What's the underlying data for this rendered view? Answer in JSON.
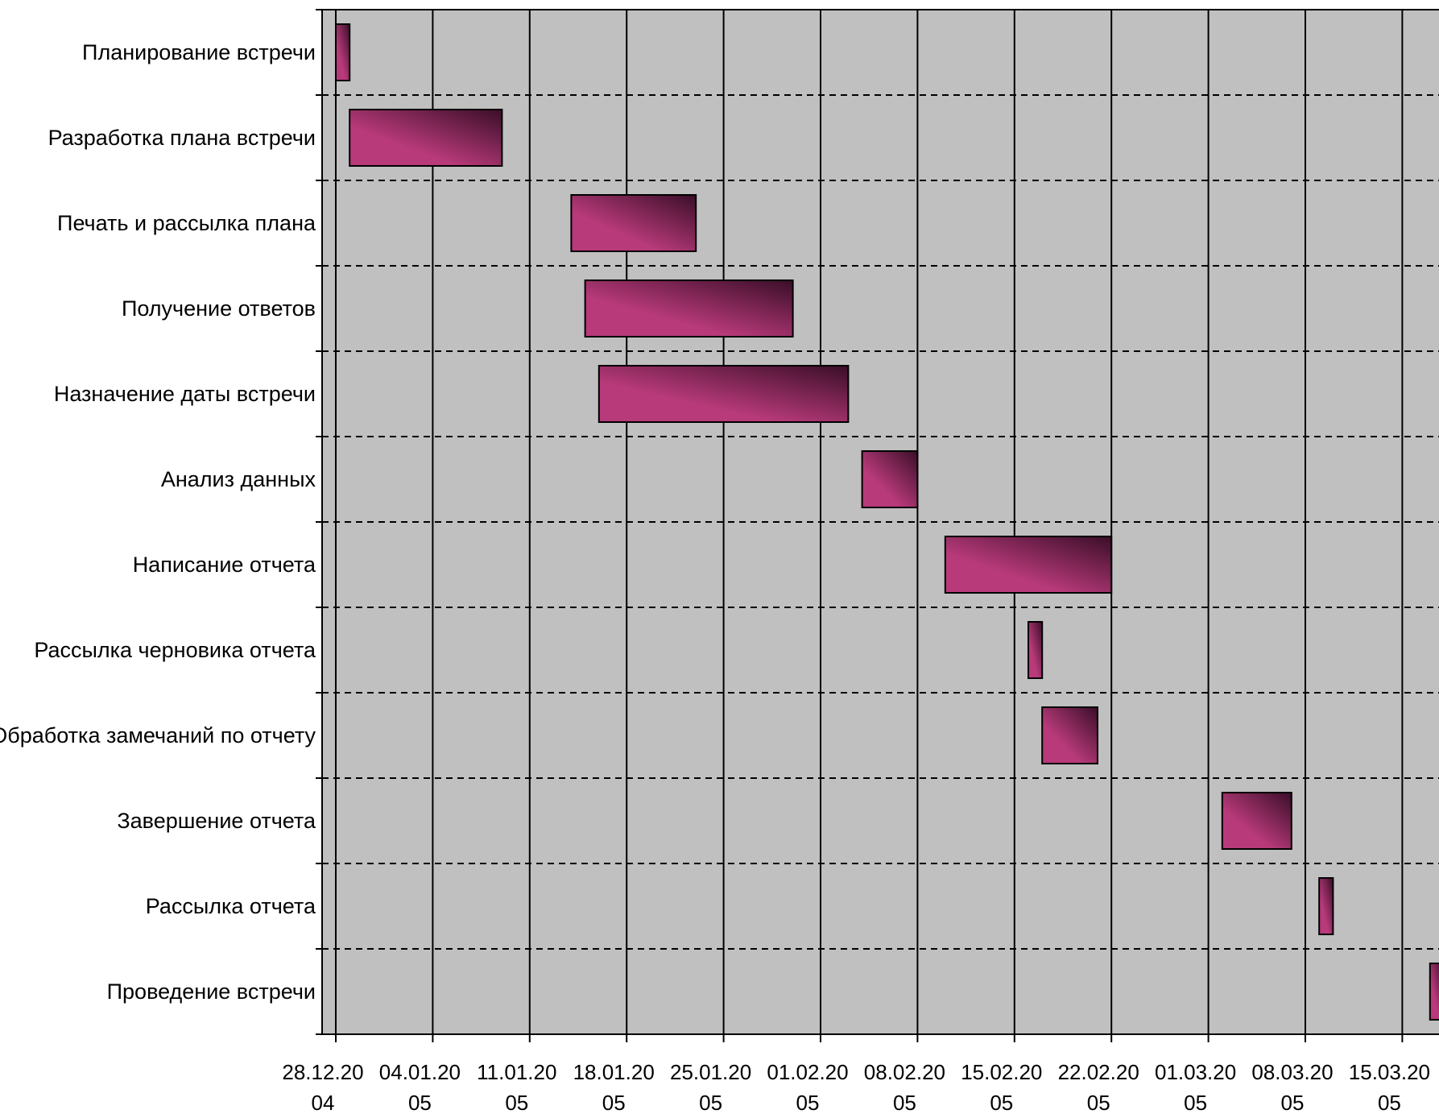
{
  "chart_data": {
    "type": "gantt",
    "title": "",
    "xlabel": "",
    "ylabel": "",
    "grid": true,
    "background_color": "#c0c0c0",
    "bar_color_light": "#b83a7a",
    "bar_color_dark": "#3a0e28",
    "x_range": [
      "2004-12-27",
      "2005-03-18"
    ],
    "x_ticks": [
      {
        "date": "2004-12-28",
        "label": [
          "28.12.20",
          "04"
        ]
      },
      {
        "date": "2005-01-04",
        "label": [
          "04.01.20",
          "05"
        ]
      },
      {
        "date": "2005-01-11",
        "label": [
          "11.01.20",
          "05"
        ]
      },
      {
        "date": "2005-01-18",
        "label": [
          "18.01.20",
          "05"
        ]
      },
      {
        "date": "2005-01-25",
        "label": [
          "25.01.20",
          "05"
        ]
      },
      {
        "date": "2005-02-01",
        "label": [
          "01.02.20",
          "05"
        ]
      },
      {
        "date": "2005-02-08",
        "label": [
          "08.02.20",
          "05"
        ]
      },
      {
        "date": "2005-02-15",
        "label": [
          "15.02.20",
          "05"
        ]
      },
      {
        "date": "2005-02-22",
        "label": [
          "22.02.20",
          "05"
        ]
      },
      {
        "date": "2005-03-01",
        "label": [
          "01.03.20",
          "05"
        ]
      },
      {
        "date": "2005-03-08",
        "label": [
          "08.03.20",
          "05"
        ]
      },
      {
        "date": "2005-03-15",
        "label": [
          "15.03.20",
          "05"
        ]
      }
    ],
    "tasks": [
      {
        "name": "Планирование встречи",
        "start": "2004-12-28",
        "end": "2004-12-29"
      },
      {
        "name": "Разработка плана встречи",
        "start": "2004-12-29",
        "end": "2005-01-09"
      },
      {
        "name": "Печать и рассылка плана",
        "start": "2005-01-14",
        "end": "2005-01-23"
      },
      {
        "name": "Получение ответов",
        "start": "2005-01-15",
        "end": "2005-01-30"
      },
      {
        "name": "Назначение даты встречи",
        "start": "2005-01-16",
        "end": "2005-02-03"
      },
      {
        "name": "Анализ данных",
        "start": "2005-02-04",
        "end": "2005-02-08"
      },
      {
        "name": "Написание отчета",
        "start": "2005-02-10",
        "end": "2005-02-22"
      },
      {
        "name": "Рассылка черновика отчета",
        "start": "2005-02-16",
        "end": "2005-02-17"
      },
      {
        "name": "Обработка замечаний по отчету",
        "start": "2005-02-17",
        "end": "2005-02-21"
      },
      {
        "name": "Завершение отчета",
        "start": "2005-03-02",
        "end": "2005-03-07"
      },
      {
        "name": "Рассылка отчета",
        "start": "2005-03-09",
        "end": "2005-03-10"
      },
      {
        "name": "Проведение встречи",
        "start": "2005-03-17",
        "end": "2005-03-18"
      }
    ]
  }
}
